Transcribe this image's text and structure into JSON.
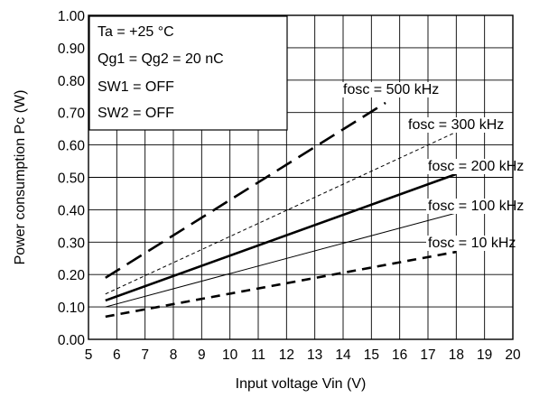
{
  "chart_data": {
    "type": "line",
    "xlabel": "Input voltage Vin (V)",
    "ylabel": "Power consumption Pc (W)",
    "xlim": [
      5,
      20
    ],
    "ylim": [
      0.0,
      1.0
    ],
    "grid": true,
    "x_ticks": [
      "5",
      "6",
      "7",
      "8",
      "9",
      "10",
      "11",
      "12",
      "13",
      "14",
      "15",
      "16",
      "17",
      "18",
      "19",
      "20"
    ],
    "y_ticks": [
      "0.00",
      "0.10",
      "0.20",
      "0.30",
      "0.40",
      "0.50",
      "0.60",
      "0.70",
      "0.80",
      "0.90",
      "1.00"
    ],
    "conditions": [
      "Ta = +25 °C",
      "Qg1 = Qg2 = 20 nC",
      "SW1 = OFF",
      "SW2 = OFF"
    ],
    "series": [
      {
        "label_main": "fosc = 500 kHz",
        "label_sub": "",
        "x": [
          5.6,
          15.5
        ],
        "y": [
          0.19,
          0.73
        ],
        "dash": "long-dash",
        "width": "thick"
      },
      {
        "label_main": "fosc = 300 kHz",
        "label_sub": "",
        "x": [
          5.6,
          18
        ],
        "y": [
          0.14,
          0.64
        ],
        "dash": "short-dash",
        "width": "thin"
      },
      {
        "label_main": "fosc = 200 kHz",
        "label_sub": "",
        "x": [
          5.6,
          18
        ],
        "y": [
          0.12,
          0.51
        ],
        "dash": "solid",
        "width": "thick"
      },
      {
        "label_main": "fosc = 100 kHz",
        "label_sub": "",
        "x": [
          5.6,
          18
        ],
        "y": [
          0.1,
          0.39
        ],
        "dash": "solid",
        "width": "thin"
      },
      {
        "label_main": "fosc = 10 kHz",
        "label_sub": "",
        "x": [
          5.6,
          18
        ],
        "y": [
          0.07,
          0.27
        ],
        "dash": "medium-dash",
        "width": "thick"
      }
    ]
  }
}
